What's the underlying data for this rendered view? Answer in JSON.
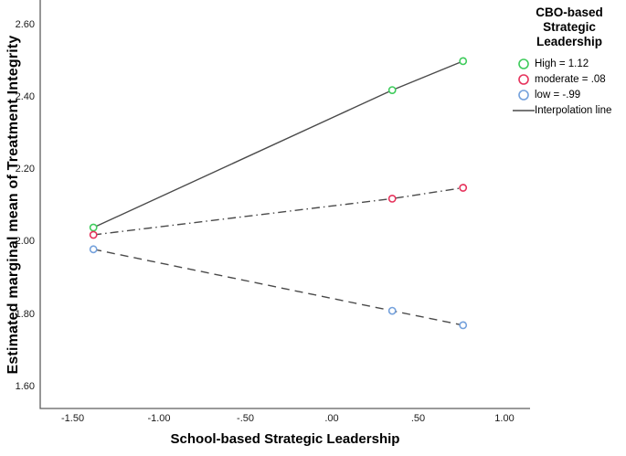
{
  "chart_data": {
    "type": "line",
    "title": "",
    "xlabel": "School-based Strategic Leadership",
    "ylabel": "Estimated marginal mean of Treatment Integrity",
    "x_ticks": [
      {
        "label": "-1.50",
        "value": -1.5
      },
      {
        "label": "-1.00",
        "value": -1.0
      },
      {
        "label": "-.50",
        "value": -0.5
      },
      {
        "label": ".00",
        "value": 0.0
      },
      {
        "label": ".50",
        "value": 0.5
      },
      {
        "label": "1.00",
        "value": 1.0
      }
    ],
    "y_ticks": [
      {
        "label": "2.60",
        "value": 2.6
      },
      {
        "label": "2.40",
        "value": 2.4
      },
      {
        "label": "2.20",
        "value": 2.2
      },
      {
        "label": "2.00",
        "value": 2.0
      },
      {
        "label": "1.80",
        "value": 1.8
      },
      {
        "label": "1.60",
        "value": 1.6
      }
    ],
    "xlim": [
      -1.688,
      1.148
    ],
    "ylim": [
      1.54,
      2.669
    ],
    "grid": false,
    "x": [
      -1.38,
      0.35,
      0.76
    ],
    "series": [
      {
        "id": "high",
        "name": "High = 1.12",
        "marker_color": "#3ecb5b",
        "line_style": "solid",
        "values": [
          2.04,
          2.42,
          2.5
        ]
      },
      {
        "id": "moderate",
        "name": "moderate = .08",
        "marker_color": "#e6335c",
        "line_style": "dashdot",
        "values": [
          2.02,
          2.12,
          2.15
        ]
      },
      {
        "id": "low",
        "name": "low = -.99",
        "marker_color": "#74a1dc",
        "line_style": "dashed",
        "values": [
          1.98,
          1.81,
          1.77
        ]
      }
    ],
    "line_color": "#4a4a4a",
    "axis_color": "#5e5e5e",
    "legend": {
      "position": "top-right",
      "title_lines": [
        "CBO-based",
        "Strategic",
        "Leadership"
      ],
      "interpolation_label": "Interpolation line"
    }
  }
}
